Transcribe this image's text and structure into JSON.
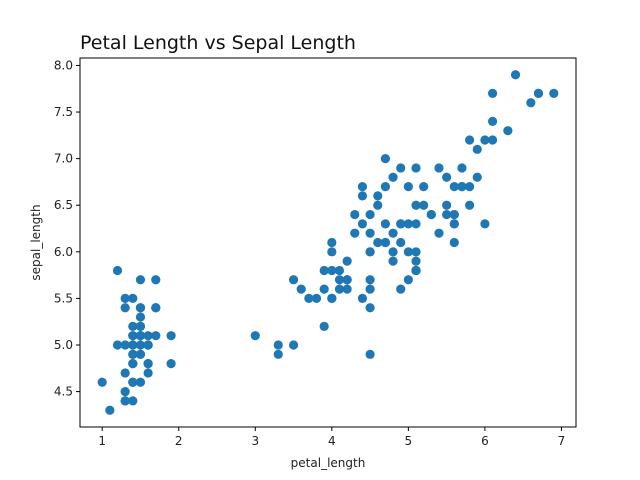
{
  "chart_data": {
    "type": "scatter",
    "title": "Petal Length vs Sepal Length",
    "xlabel": "petal_length",
    "ylabel": "sepal_length",
    "xlim": [
      0.71,
      7.19
    ],
    "ylim": [
      4.12,
      8.08
    ],
    "xticks": [
      1,
      2,
      3,
      4,
      5,
      6,
      7
    ],
    "xtick_labels": [
      "1",
      "2",
      "3",
      "4",
      "5",
      "6",
      "7"
    ],
    "yticks": [
      4.5,
      5.0,
      5.5,
      6.0,
      6.5,
      7.0,
      7.5,
      8.0
    ],
    "ytick_labels": [
      "4.5",
      "5.0",
      "5.5",
      "6.0",
      "6.5",
      "7.0",
      "7.5",
      "8.0"
    ],
    "grid": false,
    "marker_color": "#1f77b4",
    "points": [
      [
        1.4,
        5.1
      ],
      [
        1.4,
        4.9
      ],
      [
        1.3,
        4.7
      ],
      [
        1.5,
        4.6
      ],
      [
        1.4,
        5.0
      ],
      [
        1.7,
        5.4
      ],
      [
        1.4,
        4.6
      ],
      [
        1.5,
        5.0
      ],
      [
        1.4,
        4.4
      ],
      [
        1.5,
        4.9
      ],
      [
        1.5,
        5.4
      ],
      [
        1.6,
        4.8
      ],
      [
        1.4,
        4.8
      ],
      [
        1.1,
        4.3
      ],
      [
        1.2,
        5.8
      ],
      [
        1.5,
        5.7
      ],
      [
        1.3,
        5.4
      ],
      [
        1.4,
        5.1
      ],
      [
        1.7,
        5.7
      ],
      [
        1.5,
        5.1
      ],
      [
        1.7,
        5.4
      ],
      [
        1.5,
        5.1
      ],
      [
        1.0,
        4.6
      ],
      [
        1.7,
        5.1
      ],
      [
        1.9,
        4.8
      ],
      [
        1.6,
        5.0
      ],
      [
        1.6,
        5.0
      ],
      [
        1.5,
        5.2
      ],
      [
        1.4,
        5.2
      ],
      [
        1.6,
        4.7
      ],
      [
        1.6,
        4.8
      ],
      [
        1.5,
        5.4
      ],
      [
        1.5,
        5.2
      ],
      [
        1.4,
        5.5
      ],
      [
        1.5,
        4.9
      ],
      [
        1.2,
        5.0
      ],
      [
        1.3,
        5.5
      ],
      [
        1.4,
        4.9
      ],
      [
        1.3,
        4.4
      ],
      [
        1.5,
        5.1
      ],
      [
        1.3,
        5.0
      ],
      [
        1.3,
        4.5
      ],
      [
        1.3,
        4.4
      ],
      [
        1.6,
        5.0
      ],
      [
        1.9,
        5.1
      ],
      [
        1.4,
        4.8
      ],
      [
        1.6,
        5.1
      ],
      [
        1.4,
        4.6
      ],
      [
        1.5,
        5.3
      ],
      [
        1.4,
        5.0
      ],
      [
        4.7,
        7.0
      ],
      [
        4.5,
        6.4
      ],
      [
        4.9,
        6.9
      ],
      [
        4.0,
        5.5
      ],
      [
        4.6,
        6.5
      ],
      [
        4.5,
        5.7
      ],
      [
        4.7,
        6.3
      ],
      [
        3.3,
        4.9
      ],
      [
        4.6,
        6.6
      ],
      [
        3.9,
        5.2
      ],
      [
        3.5,
        5.0
      ],
      [
        4.2,
        5.9
      ],
      [
        4.0,
        6.0
      ],
      [
        4.7,
        6.1
      ],
      [
        3.6,
        5.6
      ],
      [
        4.4,
        6.7
      ],
      [
        4.5,
        5.6
      ],
      [
        4.1,
        5.8
      ],
      [
        4.5,
        6.2
      ],
      [
        3.9,
        5.6
      ],
      [
        4.8,
        5.9
      ],
      [
        4.0,
        6.1
      ],
      [
        4.9,
        6.3
      ],
      [
        4.7,
        6.1
      ],
      [
        4.3,
        6.4
      ],
      [
        4.4,
        6.6
      ],
      [
        4.8,
        6.8
      ],
      [
        5.0,
        6.7
      ],
      [
        4.5,
        6.0
      ],
      [
        3.5,
        5.7
      ],
      [
        3.8,
        5.5
      ],
      [
        3.7,
        5.5
      ],
      [
        3.9,
        5.8
      ],
      [
        5.1,
        6.0
      ],
      [
        4.5,
        5.4
      ],
      [
        4.5,
        6.0
      ],
      [
        4.7,
        6.7
      ],
      [
        4.4,
        6.3
      ],
      [
        4.1,
        5.6
      ],
      [
        4.0,
        5.5
      ],
      [
        4.4,
        5.5
      ],
      [
        4.6,
        6.1
      ],
      [
        4.0,
        5.8
      ],
      [
        3.3,
        5.0
      ],
      [
        4.2,
        5.6
      ],
      [
        4.2,
        5.7
      ],
      [
        4.2,
        5.7
      ],
      [
        4.3,
        6.2
      ],
      [
        3.0,
        5.1
      ],
      [
        4.1,
        5.7
      ],
      [
        6.0,
        6.3
      ],
      [
        5.1,
        5.8
      ],
      [
        5.9,
        7.1
      ],
      [
        5.6,
        6.3
      ],
      [
        5.8,
        6.5
      ],
      [
        6.6,
        7.6
      ],
      [
        4.5,
        4.9
      ],
      [
        6.3,
        7.3
      ],
      [
        5.8,
        6.7
      ],
      [
        6.1,
        7.2
      ],
      [
        5.1,
        6.5
      ],
      [
        5.3,
        6.4
      ],
      [
        5.5,
        6.8
      ],
      [
        5.0,
        5.7
      ],
      [
        5.1,
        5.8
      ],
      [
        5.3,
        6.4
      ],
      [
        5.5,
        6.5
      ],
      [
        6.7,
        7.7
      ],
      [
        6.9,
        7.7
      ],
      [
        5.0,
        6.0
      ],
      [
        5.7,
        6.9
      ],
      [
        4.9,
        5.6
      ],
      [
        6.7,
        7.7
      ],
      [
        4.9,
        6.3
      ],
      [
        5.7,
        6.7
      ],
      [
        6.0,
        7.2
      ],
      [
        4.8,
        6.2
      ],
      [
        4.9,
        6.1
      ],
      [
        5.6,
        6.4
      ],
      [
        5.8,
        7.2
      ],
      [
        6.1,
        7.4
      ],
      [
        6.4,
        7.9
      ],
      [
        5.6,
        6.4
      ],
      [
        5.1,
        6.3
      ],
      [
        5.6,
        6.1
      ],
      [
        6.1,
        7.7
      ],
      [
        5.6,
        6.3
      ],
      [
        5.5,
        6.4
      ],
      [
        4.8,
        6.0
      ],
      [
        5.4,
        6.9
      ],
      [
        5.6,
        6.7
      ],
      [
        5.1,
        6.9
      ],
      [
        5.1,
        5.8
      ],
      [
        5.9,
        6.8
      ],
      [
        5.7,
        6.7
      ],
      [
        5.2,
        6.7
      ],
      [
        5.0,
        6.3
      ],
      [
        5.2,
        6.5
      ],
      [
        5.4,
        6.2
      ],
      [
        5.1,
        5.9
      ]
    ]
  }
}
